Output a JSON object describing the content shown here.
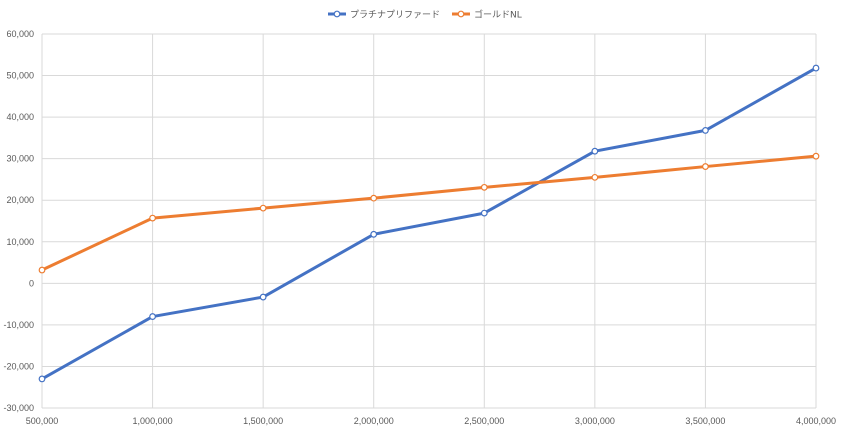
{
  "chart_data": {
    "type": "line",
    "title": "",
    "xlabel": "",
    "ylabel": "",
    "x": [
      "500,000",
      "1,000,000",
      "1,500,000",
      "2,000,000",
      "2,500,000",
      "3,000,000",
      "3,500,000",
      "4,000,000"
    ],
    "x_values": [
      500000,
      1000000,
      1500000,
      2000000,
      2500000,
      3000000,
      3500000,
      4000000
    ],
    "ylim": [
      -30000,
      60000
    ],
    "yticks": [
      60000,
      50000,
      40000,
      30000,
      20000,
      10000,
      0,
      -10000,
      -20000,
      -30000
    ],
    "ytick_labels": [
      "60,000",
      "50,000",
      "40,000",
      "30,000",
      "20,000",
      "10,000",
      "0",
      "-10,000",
      "-20,000",
      "-30,000"
    ],
    "negative_tick_color": "#C00000",
    "grid": true,
    "legend_position": "top-center",
    "series": [
      {
        "name": "プラチナプリファード",
        "color": "#4472C4",
        "values": [
          -23000,
          -8000,
          -3300,
          11800,
          16900,
          31800,
          36800,
          51800
        ]
      },
      {
        "name": "ゴールドNL",
        "color": "#ED7D31",
        "values": [
          3200,
          15700,
          18100,
          20500,
          23100,
          25500,
          28100,
          30600
        ]
      }
    ]
  }
}
